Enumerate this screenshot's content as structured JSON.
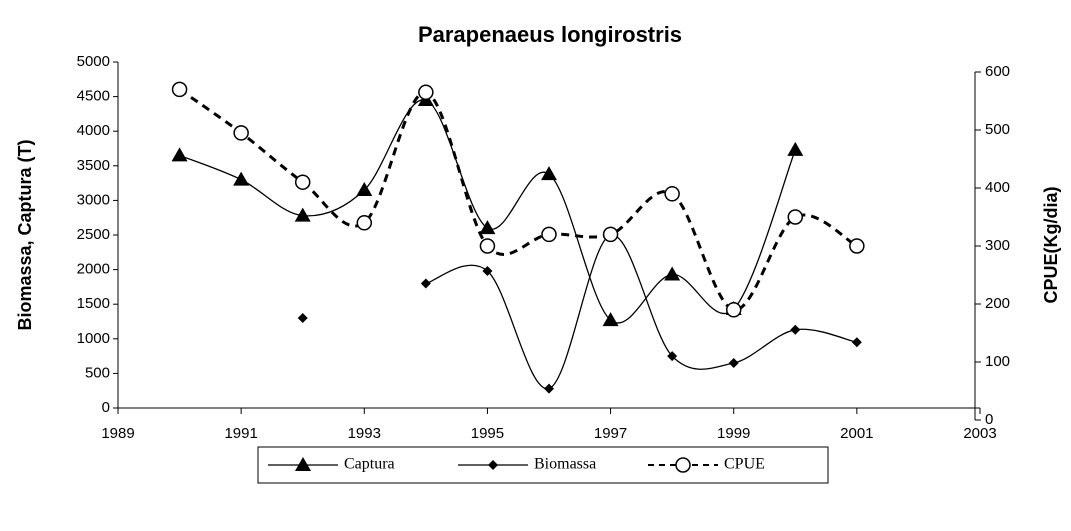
{
  "chart_data": {
    "type": "line",
    "title": "Parapenaeus longirostris",
    "ylabel": "Biomassa, Captura (T)",
    "y2label": "CPUE(Kg/dia)",
    "x": [
      1990,
      1991,
      1992,
      1993,
      1994,
      1995,
      1996,
      1997,
      1998,
      1999,
      2000,
      2001
    ],
    "xlim": [
      1989,
      2003
    ],
    "xticks": [
      1989,
      1991,
      1993,
      1995,
      1997,
      1999,
      2001,
      2003
    ],
    "ylim": [
      0,
      5000
    ],
    "yticks": [
      0,
      500,
      1000,
      1500,
      2000,
      2500,
      3000,
      3500,
      4000,
      4500,
      5000
    ],
    "y2lim": [
      0,
      600
    ],
    "y2ticks": [
      0,
      100,
      200,
      300,
      400,
      500,
      600
    ],
    "series": [
      {
        "name": "Captura",
        "color": "#000000",
        "marker": "triangle",
        "dashed": false,
        "values": [
          3650,
          3300,
          2780,
          3150,
          4450,
          2600,
          3380,
          1270,
          1930,
          1430,
          3730,
          null
        ]
      },
      {
        "name": "Biomassa",
        "color": "#000000",
        "marker": "diamond",
        "dashed": false,
        "values": [
          null,
          null,
          1300,
          null,
          1800,
          1980,
          280,
          2500,
          750,
          650,
          1130,
          950
        ]
      },
      {
        "name": "CPUE",
        "color": "#000000",
        "marker": "circle",
        "dashed": true,
        "axis": "y2",
        "values": [
          570,
          495,
          410,
          340,
          565,
          300,
          320,
          320,
          390,
          190,
          350,
          300
        ]
      }
    ]
  }
}
